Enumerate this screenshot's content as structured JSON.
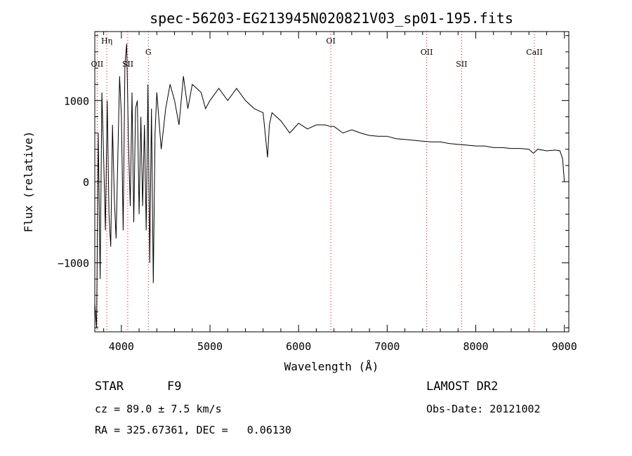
{
  "chart_data": {
    "type": "line",
    "title": "spec-56203-EG213945N020821V03_sp01-195.fits",
    "xlabel": "Wavelength (Å)",
    "ylabel": "Flux (relative)",
    "xlim": [
      3700,
      9050
    ],
    "ylim": [
      -1850,
      1850
    ],
    "x_ticks": [
      4000,
      5000,
      6000,
      7000,
      8000,
      9000
    ],
    "y_ticks": [
      -1000,
      0,
      1000
    ],
    "grid": false,
    "line_color": "#000000",
    "marker_color": "#ff0000",
    "lines": [
      {
        "label": "OII",
        "x": 3727
      },
      {
        "label": "Hη",
        "x": 3835
      },
      {
        "label": "SII",
        "x": 4072
      },
      {
        "label": "G",
        "x": 4305
      },
      {
        "label": "OI",
        "x": 6364
      },
      {
        "label": "OII",
        "x": 7446
      },
      {
        "label": "SII",
        "x": 7840
      },
      {
        "label": "CaII",
        "x": 8662
      }
    ],
    "series": [
      {
        "x": [
          3700,
          3720,
          3740,
          3760,
          3780,
          3800,
          3820,
          3840,
          3860,
          3880,
          3900,
          3920,
          3940,
          3960,
          3980,
          4000,
          4020,
          4040,
          4060,
          4080,
          4100,
          4120,
          4140,
          4160,
          4180,
          4200,
          4220,
          4240,
          4260,
          4280,
          4300,
          4320,
          4340,
          4360,
          4380,
          4400,
          4450,
          4500,
          4550,
          4600,
          4650,
          4700,
          4750,
          4800,
          4850,
          4900,
          4950,
          5000,
          5100,
          5200,
          5300,
          5400,
          5500,
          5600,
          5650,
          5670,
          5700,
          5800,
          5900,
          6000,
          6100,
          6200,
          6300,
          6360,
          6400,
          6500,
          6600,
          6700,
          6800,
          6900,
          7000,
          7100,
          7200,
          7300,
          7400,
          7500,
          7600,
          7700,
          7800,
          7900,
          8000,
          8100,
          8200,
          8300,
          8400,
          8500,
          8600,
          8650,
          8700,
          8800,
          8900,
          8950,
          8980,
          9000
        ],
        "y": [
          -1500,
          -1800,
          600,
          -1200,
          1100,
          300,
          -600,
          1000,
          -400,
          -800,
          700,
          -200,
          -700,
          300,
          1300,
          800,
          -600,
          1450,
          1700,
          500,
          -300,
          1100,
          -500,
          900,
          1000,
          -400,
          800,
          -300,
          700,
          -600,
          1200,
          -1000,
          900,
          -1250,
          600,
          1100,
          400,
          900,
          1200,
          1000,
          700,
          1300,
          900,
          1200,
          1150,
          1100,
          900,
          1000,
          1150,
          1000,
          1150,
          1000,
          900,
          850,
          300,
          700,
          850,
          750,
          600,
          720,
          650,
          700,
          700,
          680,
          680,
          600,
          640,
          600,
          570,
          560,
          560,
          530,
          520,
          510,
          500,
          490,
          490,
          470,
          460,
          450,
          440,
          440,
          420,
          420,
          410,
          410,
          400,
          350,
          400,
          380,
          390,
          380,
          280,
          0
        ]
      }
    ]
  },
  "info": {
    "class_label": "STAR",
    "subclass_label": "F9",
    "cz_text": "cz = 89.0 ± 7.5 km/s",
    "coords_text": "RA = 325.67361, DEC =   0.06130",
    "survey_label": "LAMOST DR2",
    "obs_date_text": "Obs-Date: 20121002"
  }
}
